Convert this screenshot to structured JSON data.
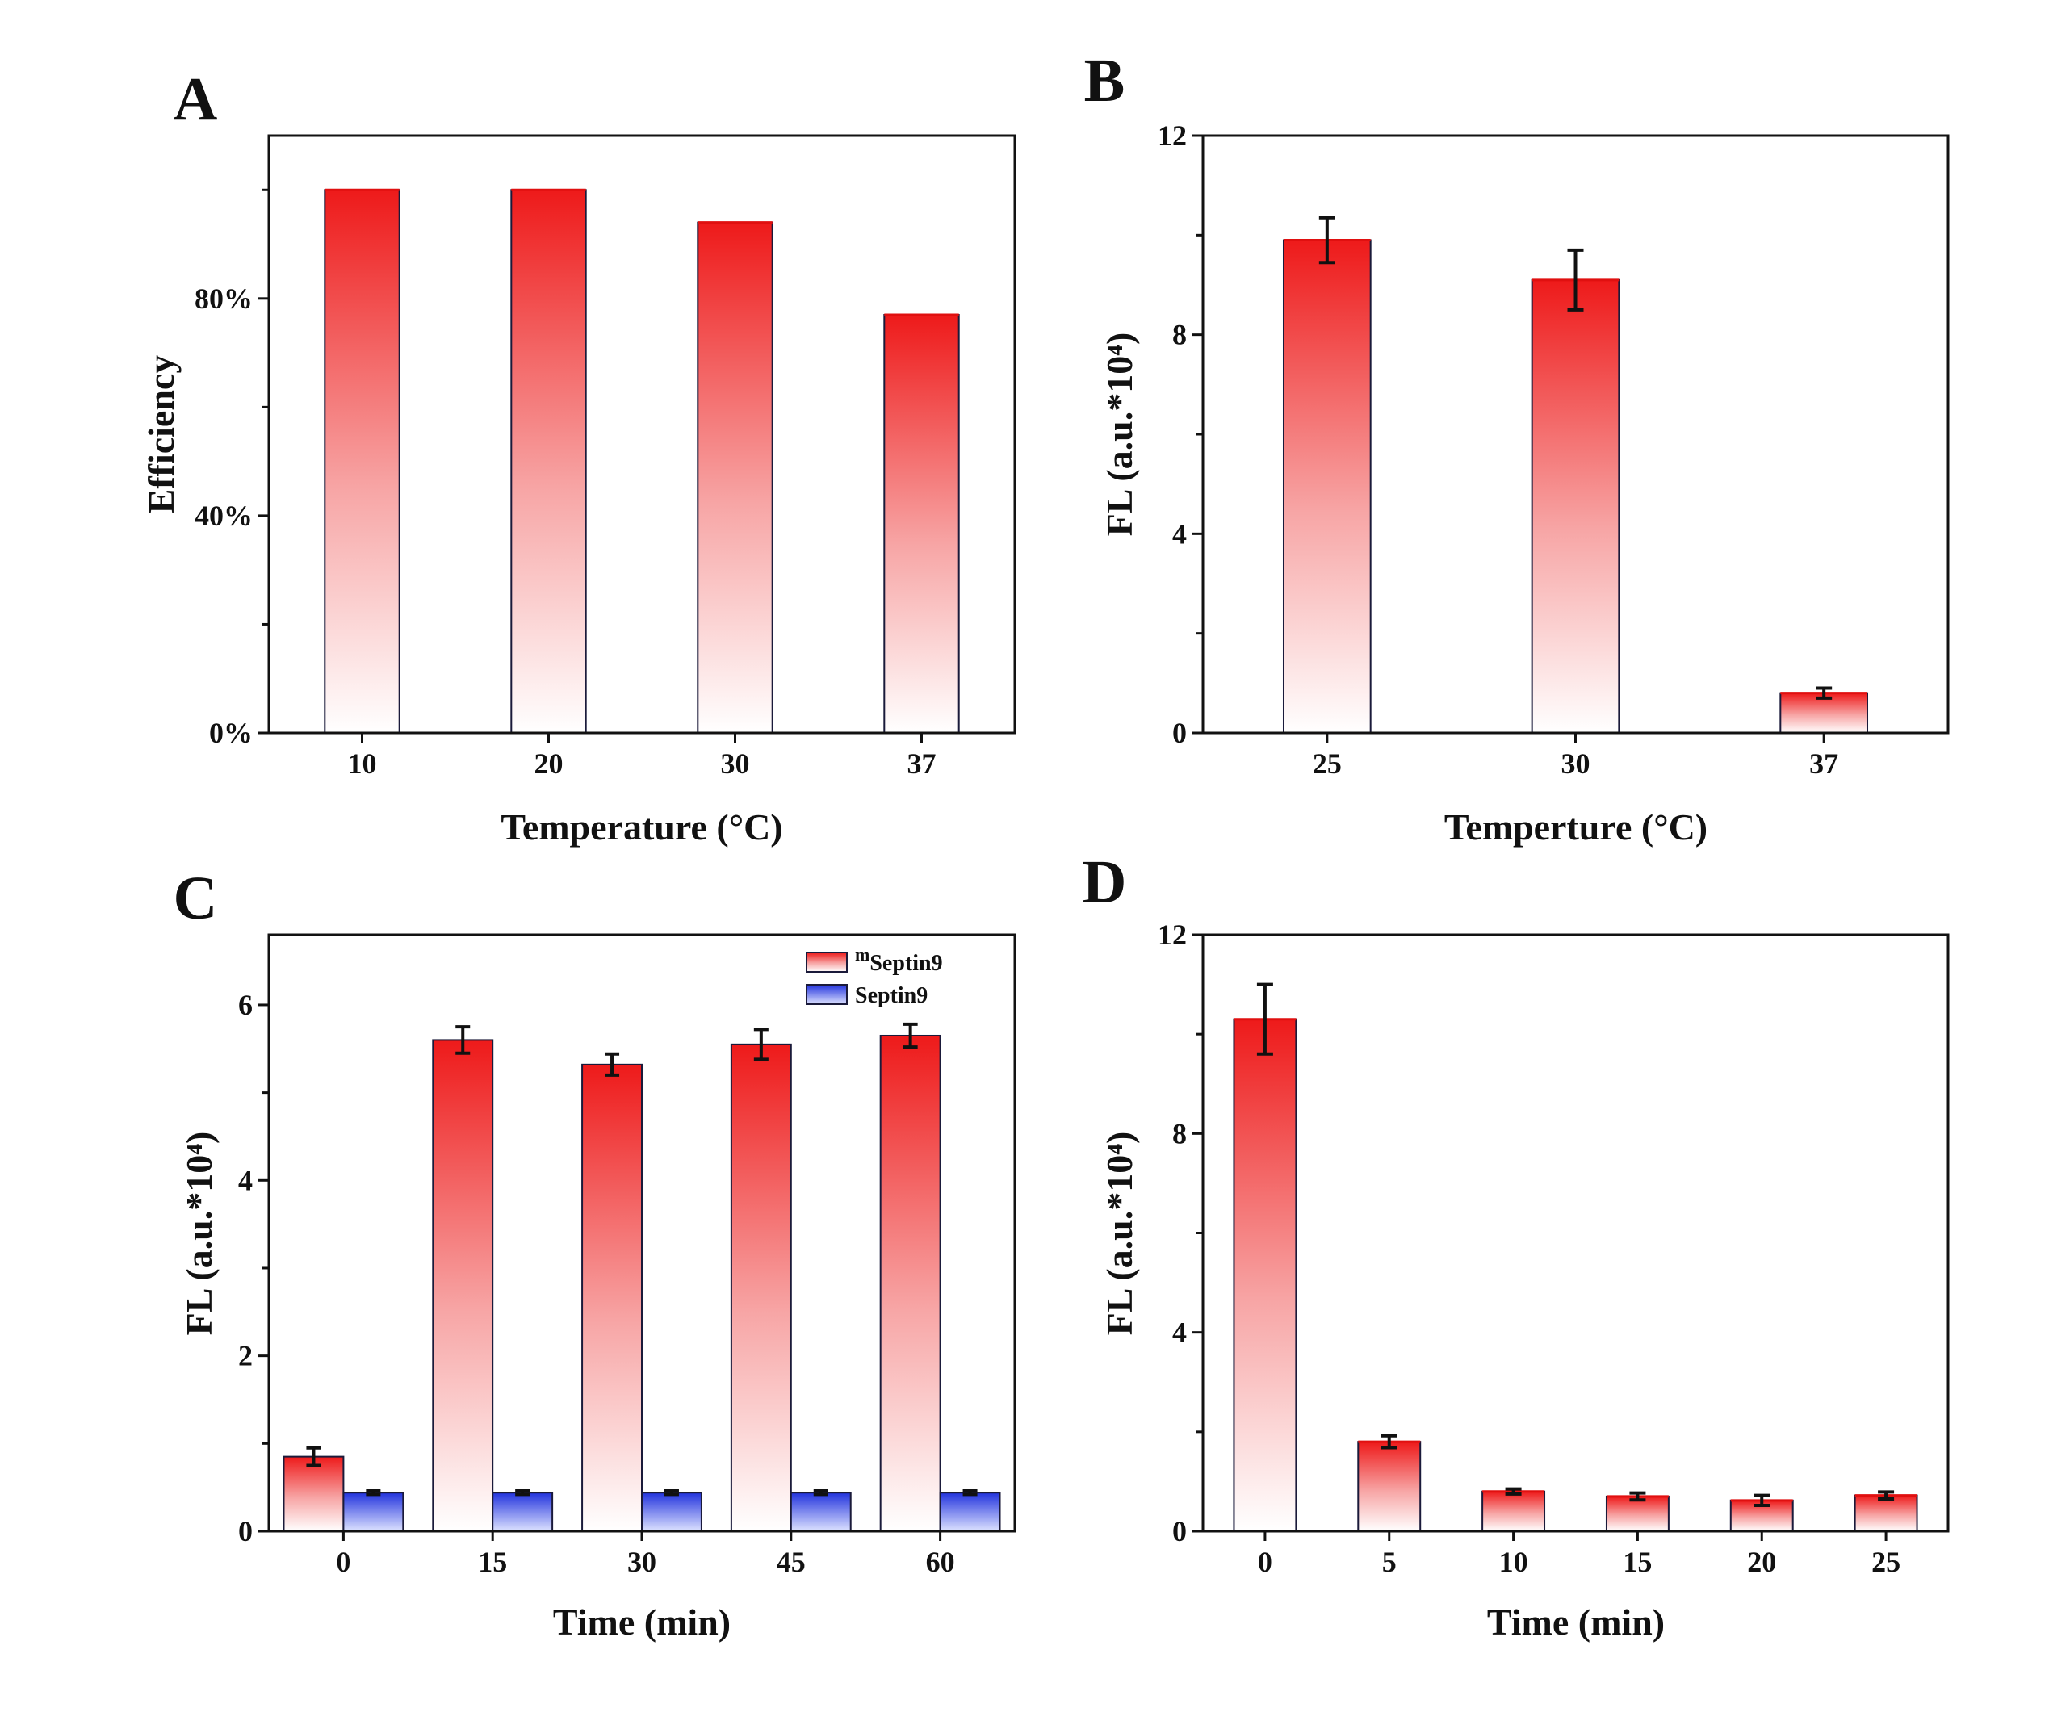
{
  "chart_data": [
    {
      "panel": "A",
      "type": "bar",
      "categories": [
        "10",
        "20",
        "30",
        "37"
      ],
      "values": [
        100,
        100,
        94,
        77
      ],
      "xlabel": "Temperature  (°C)",
      "ylabel": "Efficiency",
      "ylim": [
        0,
        110
      ],
      "yticks": [
        0,
        40,
        80
      ],
      "ytick_labels": [
        "0%",
        "40%",
        "80%"
      ],
      "grid": false
    },
    {
      "panel": "B",
      "type": "bar",
      "categories": [
        "25",
        "30",
        "37"
      ],
      "values": [
        9.9,
        9.1,
        0.8
      ],
      "errors": [
        0.45,
        0.6,
        0.1
      ],
      "xlabel": "Temperture (°C)",
      "ylabel": "FL (a.u.*10⁴)",
      "ylim": [
        0,
        12
      ],
      "yticks": [
        0,
        4,
        8,
        12
      ],
      "ytick_labels": [
        "0",
        "4",
        "8",
        "12"
      ],
      "grid": false
    },
    {
      "panel": "C",
      "type": "bar",
      "categories": [
        "0",
        "15",
        "30",
        "45",
        "60"
      ],
      "series": [
        {
          "name": "mSeptin9",
          "name_sup": "m",
          "name_base": "Septin9",
          "values": [
            0.85,
            5.6,
            5.32,
            5.55,
            5.65
          ],
          "errors": [
            0.1,
            0.15,
            0.12,
            0.17,
            0.13
          ],
          "color": "#ee1c1c"
        },
        {
          "name": "Septin9",
          "name_sup": "",
          "name_base": "Septin9",
          "values": [
            0.44,
            0.44,
            0.44,
            0.44,
            0.44
          ],
          "errors": [
            0.02,
            0.02,
            0.02,
            0.02,
            0.02
          ],
          "color": "#2233dd"
        }
      ],
      "xlabel": "Time  (min)",
      "ylabel": "FL (a.u.*10⁴)",
      "ylim": [
        0,
        6.8
      ],
      "yticks": [
        0,
        2,
        4,
        6
      ],
      "ytick_labels": [
        "0",
        "2",
        "4",
        "6"
      ],
      "legend": "top-right",
      "grid": false
    },
    {
      "panel": "D",
      "type": "bar",
      "categories": [
        "0",
        "5",
        "10",
        "15",
        "20",
        "25"
      ],
      "values": [
        10.3,
        1.8,
        0.8,
        0.7,
        0.62,
        0.72
      ],
      "errors": [
        0.7,
        0.12,
        0.05,
        0.07,
        0.1,
        0.07
      ],
      "xlabel": "Time (min)",
      "ylabel": "FL (a.u.*10⁴)",
      "ylim": [
        0,
        12
      ],
      "yticks": [
        0,
        4,
        8,
        12
      ],
      "ytick_labels": [
        "0",
        "4",
        "8",
        "12"
      ],
      "grid": false
    }
  ]
}
